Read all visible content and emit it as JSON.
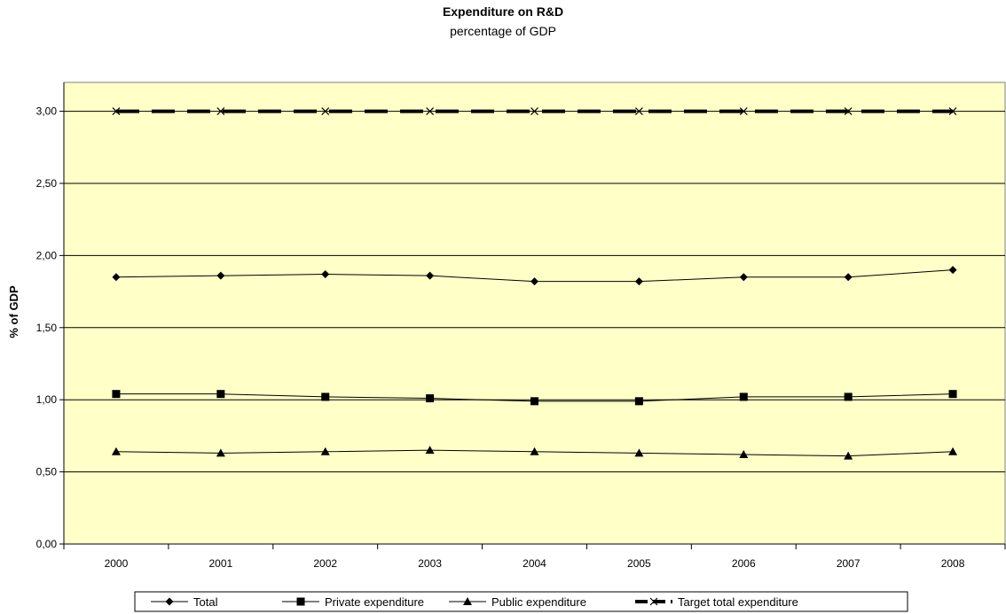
{
  "chart_data": {
    "type": "line",
    "title": "Expenditure on R&D",
    "subtitle": "percentage of GDP",
    "xlabel": "",
    "ylabel": "% of GDP",
    "categories": [
      "2000",
      "2001",
      "2002",
      "2003",
      "2004",
      "2005",
      "2006",
      "2007",
      "2008"
    ],
    "ylim": [
      0,
      3.2
    ],
    "yticks": [
      0,
      0.5,
      1.0,
      1.5,
      2.0,
      2.5,
      3.0
    ],
    "ytick_labels": [
      "0,00",
      "0,50",
      "1,00",
      "1,50",
      "2,00",
      "2,50",
      "3,00"
    ],
    "grid": true,
    "plot_background": "#ffffc8",
    "legend_position": "bottom",
    "series": [
      {
        "name": "Total",
        "marker": "diamond",
        "color": "#000000",
        "values": [
          1.85,
          1.86,
          1.87,
          1.86,
          1.82,
          1.82,
          1.85,
          1.85,
          1.9
        ]
      },
      {
        "name": "Private expenditure",
        "marker": "square",
        "color": "#000000",
        "values": [
          1.04,
          1.04,
          1.02,
          1.01,
          0.99,
          0.99,
          1.02,
          1.02,
          1.04
        ]
      },
      {
        "name": "Public expenditure",
        "marker": "triangle",
        "color": "#000000",
        "values": [
          0.64,
          0.63,
          0.64,
          0.65,
          0.64,
          0.63,
          0.62,
          0.61,
          0.64
        ]
      },
      {
        "name": "Target total expenditure",
        "marker": "x",
        "color": "#000000",
        "line": "dashed",
        "values": [
          3.0,
          3.0,
          3.0,
          3.0,
          3.0,
          3.0,
          3.0,
          3.0,
          3.0
        ]
      }
    ]
  }
}
